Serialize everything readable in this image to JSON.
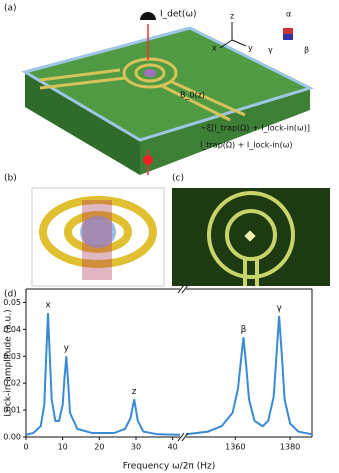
{
  "figure": {
    "panel_labels": [
      "(a)",
      "(b)",
      "(c)",
      "(d)"
    ],
    "panel_a": {
      "detector": "I_det(ω)",
      "axes": [
        "z",
        "x",
        "y"
      ],
      "rotations": [
        "α",
        "β",
        "γ"
      ],
      "field": "B_0(z)",
      "top_current": "−ξ[I_trap(Ω) + I_lock-in(ω)]",
      "bottom_current": "I_trap(Ω) + I_lock-in(ω)"
    }
  },
  "chart_data": {
    "type": "line",
    "xlabel": "Frequency ω/2π (Hz)",
    "ylabel": "Lock-in amplitude (a.u.)",
    "color": "#3a8ad6",
    "ylim": [
      0,
      0.055
    ],
    "yticks": [
      {
        "value": 0,
        "label": "0.00"
      },
      {
        "value": 0.01,
        "label": "0.01"
      },
      {
        "value": 0.02,
        "label": "0.02"
      },
      {
        "value": 0.03,
        "label": "0.03"
      },
      {
        "value": 0.04,
        "label": "0.04"
      },
      {
        "value": 0.05,
        "label": "0.05"
      }
    ],
    "segments": [
      {
        "xlim": [
          0,
          42
        ],
        "xticks": [
          0,
          10,
          20,
          30,
          40
        ],
        "x": [
          0,
          2,
          4,
          5,
          5.5,
          6,
          6.5,
          7,
          8,
          9,
          10,
          10.5,
          11,
          11.5,
          12,
          14,
          18,
          24,
          27,
          28.5,
          29.5,
          30.5,
          32,
          36,
          42
        ],
        "values": [
          0.0008,
          0.0015,
          0.004,
          0.012,
          0.03,
          0.046,
          0.03,
          0.014,
          0.006,
          0.006,
          0.012,
          0.022,
          0.03,
          0.02,
          0.009,
          0.003,
          0.0015,
          0.0015,
          0.003,
          0.007,
          0.014,
          0.006,
          0.002,
          0.001,
          0.0008
        ]
      },
      {
        "xlim": [
          1342,
          1388
        ],
        "xticks": [
          1360,
          1380
        ],
        "x": [
          1342,
          1350,
          1355,
          1359,
          1361,
          1362,
          1363,
          1364,
          1365,
          1367,
          1370,
          1372,
          1374,
          1375,
          1376,
          1377,
          1378,
          1380,
          1383,
          1388
        ],
        "values": [
          0.001,
          0.002,
          0.004,
          0.009,
          0.018,
          0.028,
          0.037,
          0.026,
          0.014,
          0.006,
          0.004,
          0.006,
          0.015,
          0.03,
          0.045,
          0.03,
          0.014,
          0.005,
          0.002,
          0.001
        ]
      }
    ],
    "annotations": [
      {
        "text": "x",
        "segment": 0,
        "x": 6,
        "y": 0.049
      },
      {
        "text": "y",
        "segment": 0,
        "x": 11,
        "y": 0.033
      },
      {
        "text": "z",
        "segment": 0,
        "x": 29.5,
        "y": 0.017
      },
      {
        "text": "β",
        "segment": 1,
        "x": 1363,
        "y": 0.04
      },
      {
        "text": "γ",
        "segment": 1,
        "x": 1376,
        "y": 0.048
      }
    ]
  }
}
